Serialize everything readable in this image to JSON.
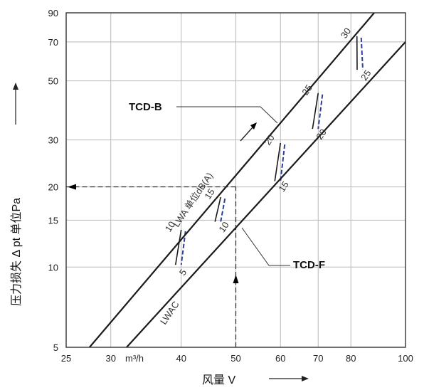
{
  "chart_data": {
    "type": "line",
    "title": "",
    "xlabel": "风量 V",
    "ylabel": "压力损失 Δ pt 单位Pa",
    "x_unit": "m³/h",
    "x_scale": "log",
    "y_scale": "log",
    "xlim": [
      25,
      100
    ],
    "ylim": [
      5,
      90
    ],
    "x_ticks": [
      25,
      30,
      40,
      50,
      60,
      70,
      80,
      100
    ],
    "y_ticks": [
      5,
      10,
      15,
      20,
      30,
      50,
      70,
      90
    ],
    "x_tick_labels": [
      "25",
      "30",
      "40",
      "50",
      "60",
      "70",
      "80",
      "100"
    ],
    "y_tick_labels": [
      "5",
      "10",
      "15",
      "20",
      "30",
      "50",
      "70",
      "90"
    ],
    "grid": true,
    "series": [
      {
        "name": "TCD-B",
        "x": [
          27.5,
          88
        ],
        "y": [
          5,
          90
        ]
      },
      {
        "name": "TCD-F",
        "x": [
          32,
          100
        ],
        "y": [
          5,
          70
        ]
      }
    ],
    "noise_label_B": "LWA 单位dB(A)",
    "noise_label_F": "LWAC",
    "noise_marks_B": [
      {
        "label": "10",
        "x": 40,
        "y": 13.8
      },
      {
        "label": "15",
        "x": 47,
        "y": 18.3
      },
      {
        "label": "20",
        "x": 60,
        "y": 29.2
      },
      {
        "label": "25",
        "x": 70,
        "y": 45
      },
      {
        "label": "30",
        "x": 82,
        "y": 73.5
      }
    ],
    "noise_marks_F": [
      {
        "label": "5",
        "x": 40,
        "y": 10.2
      },
      {
        "label": "10",
        "x": 47,
        "y": 14.8
      },
      {
        "label": "15",
        "x": 60,
        "y": 21
      },
      {
        "label": "20",
        "x": 70,
        "y": 33
      },
      {
        "label": "25",
        "x": 84,
        "y": 55
      }
    ],
    "example_reading": {
      "x": 50,
      "y": 20
    }
  },
  "labels": {
    "series_b": "TCD-B",
    "series_f": "TCD-F",
    "x_unit": "m³/h"
  },
  "colors": {
    "curve": "#1a1a1a",
    "noise_blue": "#2b3f9a",
    "grid": "#b9b9b9"
  }
}
